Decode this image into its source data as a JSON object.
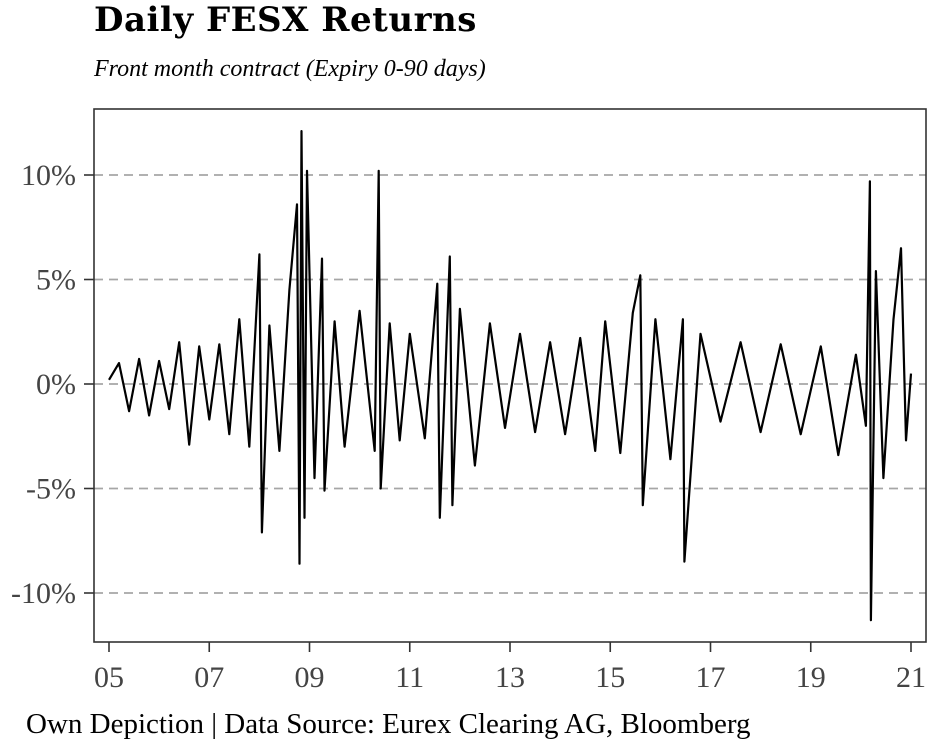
{
  "chart_data": {
    "type": "line",
    "title": "Daily FESX Returns",
    "subtitle": "Front month contract (Expiry 0-90 days)",
    "caption": "Own Depiction | Data Source: Eurex Clearing AG, Bloomberg",
    "xlabel": "",
    "ylabel": "",
    "x_ticks": [
      "05",
      "07",
      "09",
      "11",
      "13",
      "15",
      "17",
      "19",
      "21"
    ],
    "y_ticks": [
      "-10%",
      "-5%",
      "0%",
      "5%",
      "10%"
    ],
    "xlim": [
      2005,
      2021
    ],
    "ylim": [
      -12.5,
      13
    ],
    "grid": "horizontal-dashed",
    "series": [
      {
        "values": [
          [
            2005.0,
            0.2
          ],
          [
            2005.2,
            1.0
          ],
          [
            2005.4,
            -1.3
          ],
          [
            2005.6,
            1.2
          ],
          [
            2005.8,
            -1.5
          ],
          [
            2006.0,
            1.1
          ],
          [
            2006.2,
            -1.2
          ],
          [
            2006.4,
            2.0
          ],
          [
            2006.6,
            -2.9
          ],
          [
            2006.8,
            1.8
          ],
          [
            2007.0,
            -1.7
          ],
          [
            2007.2,
            1.9
          ],
          [
            2007.4,
            -2.4
          ],
          [
            2007.6,
            3.1
          ],
          [
            2007.8,
            -3.0
          ],
          [
            2008.0,
            6.2
          ],
          [
            2008.05,
            -7.1
          ],
          [
            2008.2,
            2.8
          ],
          [
            2008.4,
            -3.2
          ],
          [
            2008.6,
            4.5
          ],
          [
            2008.75,
            8.6
          ],
          [
            2008.8,
            -8.6
          ],
          [
            2008.84,
            12.1
          ],
          [
            2008.9,
            -6.4
          ],
          [
            2008.95,
            10.2
          ],
          [
            2009.1,
            -4.5
          ],
          [
            2009.25,
            6.0
          ],
          [
            2009.3,
            -5.1
          ],
          [
            2009.5,
            3.0
          ],
          [
            2009.7,
            -3.0
          ],
          [
            2010.0,
            3.5
          ],
          [
            2010.3,
            -3.2
          ],
          [
            2010.38,
            10.2
          ],
          [
            2010.42,
            -5.0
          ],
          [
            2010.6,
            2.9
          ],
          [
            2010.8,
            -2.7
          ],
          [
            2011.0,
            2.4
          ],
          [
            2011.3,
            -2.6
          ],
          [
            2011.55,
            4.8
          ],
          [
            2011.6,
            -6.4
          ],
          [
            2011.8,
            6.1
          ],
          [
            2011.85,
            -5.8
          ],
          [
            2012.0,
            3.6
          ],
          [
            2012.3,
            -3.9
          ],
          [
            2012.6,
            2.9
          ],
          [
            2012.9,
            -2.1
          ],
          [
            2013.2,
            2.4
          ],
          [
            2013.5,
            -2.3
          ],
          [
            2013.8,
            2.0
          ],
          [
            2014.1,
            -2.4
          ],
          [
            2014.4,
            2.2
          ],
          [
            2014.7,
            -3.2
          ],
          [
            2014.9,
            3.0
          ],
          [
            2015.2,
            -3.3
          ],
          [
            2015.45,
            3.4
          ],
          [
            2015.6,
            5.2
          ],
          [
            2015.65,
            -5.8
          ],
          [
            2015.9,
            3.1
          ],
          [
            2016.2,
            -3.6
          ],
          [
            2016.45,
            3.1
          ],
          [
            2016.48,
            -8.5
          ],
          [
            2016.8,
            2.4
          ],
          [
            2017.2,
            -1.8
          ],
          [
            2017.6,
            2.0
          ],
          [
            2018.0,
            -2.3
          ],
          [
            2018.4,
            1.9
          ],
          [
            2018.8,
            -2.4
          ],
          [
            2019.2,
            1.8
          ],
          [
            2019.55,
            -3.4
          ],
          [
            2019.9,
            1.4
          ],
          [
            2020.1,
            -2.0
          ],
          [
            2020.18,
            9.7
          ],
          [
            2020.2,
            -11.3
          ],
          [
            2020.3,
            5.4
          ],
          [
            2020.45,
            -4.5
          ],
          [
            2020.65,
            3.1
          ],
          [
            2020.8,
            6.5
          ],
          [
            2020.9,
            -2.7
          ],
          [
            2021.0,
            0.5
          ]
        ]
      }
    ],
    "line_color": "#000000",
    "grid_color": "#a6a6a6"
  }
}
